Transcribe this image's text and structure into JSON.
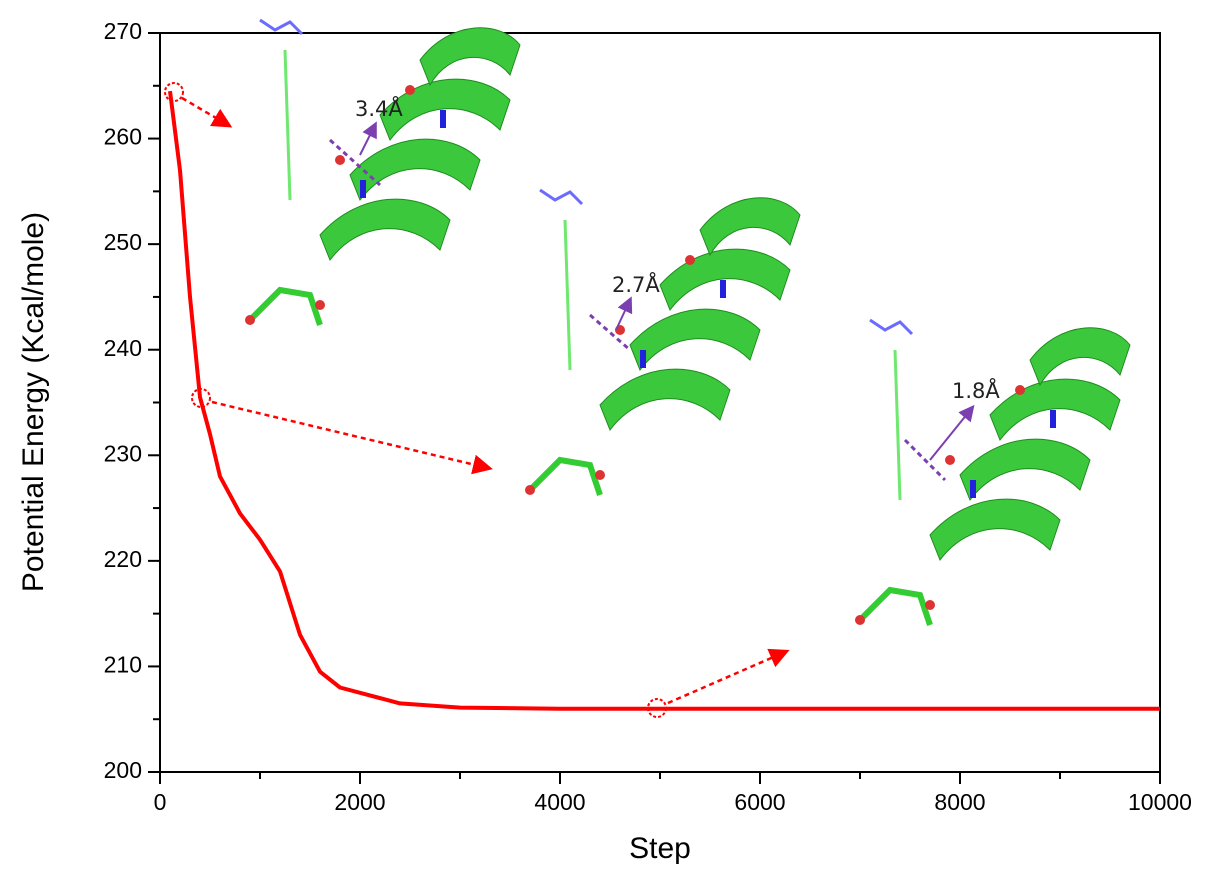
{
  "chart_data": {
    "type": "line",
    "x_label": "Step",
    "y_label": "Potential Energy (Kcal/mole)",
    "x": [
      100,
      200,
      300,
      400,
      500,
      600,
      800,
      1000,
      1200,
      1400,
      1600,
      1800,
      2000,
      2400,
      3000,
      4000,
      5000,
      10000
    ],
    "values": [
      264.5,
      257,
      245,
      235.5,
      232,
      228,
      224.5,
      222,
      219,
      213,
      209.5,
      208,
      207.5,
      206.5,
      206.1,
      206,
      206,
      206
    ],
    "color": "#ff0000",
    "xlim": [
      0,
      10000
    ],
    "xticks": [
      0,
      2000,
      4000,
      6000,
      8000,
      10000
    ],
    "xminorticks": [
      1000,
      3000,
      5000,
      7000,
      9000
    ],
    "ylim": [
      200,
      270
    ],
    "yticks": [
      200,
      210,
      220,
      230,
      240,
      250,
      260,
      270
    ],
    "yminorticks": [
      205,
      215,
      225,
      235,
      245,
      255,
      265
    ],
    "annotations": [
      "3.4Å",
      "2.7Å",
      "1.8Å"
    ]
  }
}
